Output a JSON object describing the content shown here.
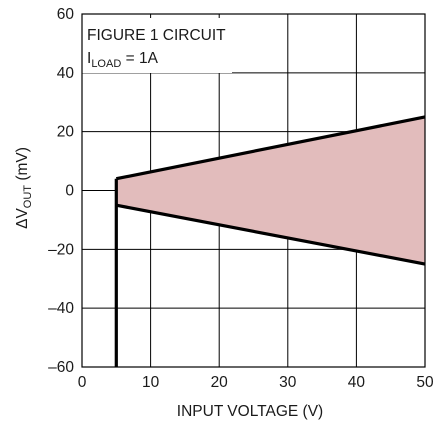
{
  "chart_data": {
    "type": "area",
    "annotation": {
      "line1": "FIGURE 1 CIRCUIT",
      "line2_prefix": "I",
      "line2_sub": "LOAD",
      "line2_suffix": " = 1A"
    },
    "xlabel": "INPUT VOLTAGE (V)",
    "ylabel": {
      "prefix": "ΔV",
      "sub": "OUT",
      "suffix": " (mV)"
    },
    "xlim": [
      0,
      50
    ],
    "ylim": [
      -60,
      60
    ],
    "xticks": [
      0,
      10,
      20,
      30,
      40,
      50
    ],
    "yticks": [
      60,
      40,
      20,
      0,
      -20,
      -40,
      -60
    ],
    "ytick_labels": [
      "60",
      "40",
      "20",
      "0",
      "–20",
      "–40",
      "–60"
    ],
    "grid": true,
    "band": {
      "x": [
        5,
        50
      ],
      "upper": [
        4,
        25
      ],
      "lower": [
        -5,
        -25
      ],
      "fill": "#e2bcbc",
      "stroke": "#000000"
    },
    "vertical_line": {
      "x": 5,
      "y": [
        -60,
        4
      ]
    }
  }
}
